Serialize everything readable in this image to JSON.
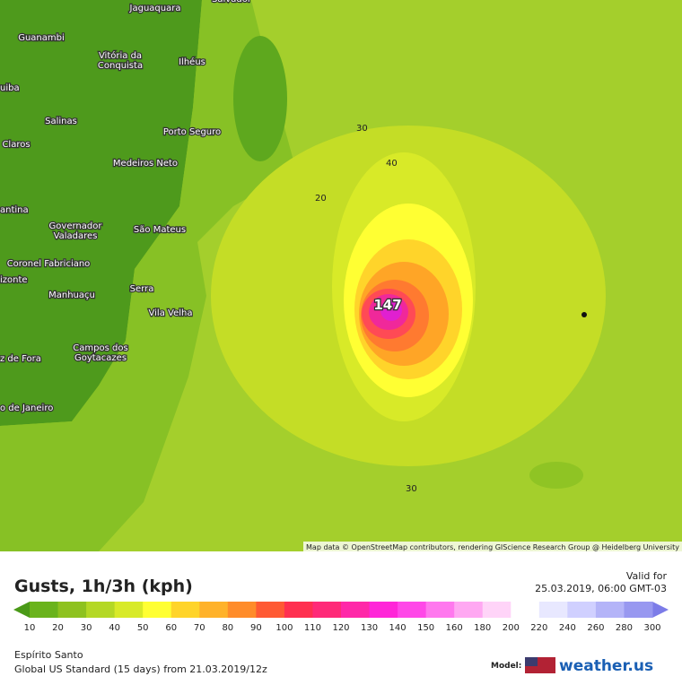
{
  "map": {
    "places": [
      "Salvador",
      "Jaguaquara",
      "Guanambi",
      "Vitória da Conquista",
      "Ilhéus",
      "uiba",
      "Salinas",
      "Porto Seguro",
      "Claros",
      "Medeiros Neto",
      "antina",
      "Governador Valadares",
      "São Mateus",
      "Coronel Fabriciano",
      "izonte",
      "Serra",
      "Vila Velha",
      "Manhuaçu",
      "Campos dos Goytacazes",
      "z de Fora",
      "o de Janeiro"
    ],
    "contour_labels": [
      30,
      40,
      20,
      30
    ],
    "max_value": 147,
    "attribution": "Map data © OpenStreetMap contributors, rendering GIScience Research Group @ Heidelberg University"
  },
  "legend": {
    "title": "Gusts, 1h/3h (kph)",
    "valid_label": "Valid for",
    "valid_time": "25.03.2019, 06:00 GMT-03",
    "labels": [
      10,
      20,
      30,
      40,
      50,
      60,
      70,
      80,
      90,
      100,
      110,
      120,
      130,
      140,
      150,
      160,
      180,
      200,
      220,
      240,
      260,
      280,
      300
    ],
    "colors": [
      "#6ab31c",
      "#8ec21f",
      "#b4d825",
      "#d8ea28",
      "#ffff33",
      "#ffd42a",
      "#ffb22a",
      "#ff8c2a",
      "#ff5a34",
      "#ff3050",
      "#ff2a78",
      "#ff28a8",
      "#ff26d8",
      "#ff48e8",
      "#ff78ee",
      "#ffa8f2",
      "#ffd4f8",
      "#ffffff",
      "#e8e8ff",
      "#d0d0ff",
      "#b4b4f8",
      "#9898f0"
    ],
    "under_color": "#4a9a18",
    "over_color": "#7c7ce8"
  },
  "footer": {
    "region": "Espírito Santo",
    "model_run": "Global US Standard (15 days) from 21.03.2019/12z",
    "model_label": "Model:",
    "brand": "weather.us"
  }
}
